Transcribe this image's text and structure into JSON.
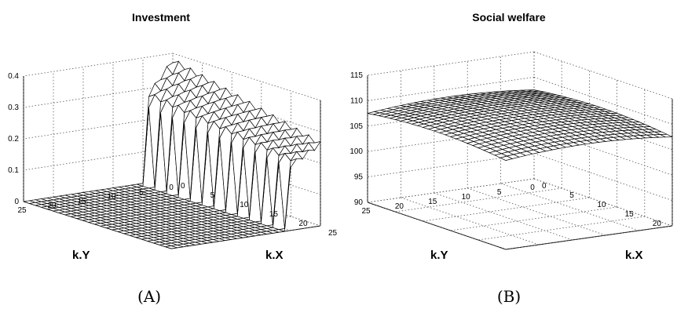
{
  "chart_data": [
    {
      "panel": "(A)",
      "type": "surface",
      "title": "Investment",
      "xlabel": "k.X",
      "ylabel": "k.Y",
      "zlabel": "",
      "x_range": [
        0,
        25
      ],
      "y_range": [
        0,
        25
      ],
      "zlim": [
        0,
        0.4
      ],
      "x_ticks": [
        "0",
        "5",
        "10",
        "15",
        "20",
        "25"
      ],
      "y_ticks": [
        "0",
        "5",
        "10",
        "15",
        "20",
        "25"
      ],
      "z_ticks": [
        "0",
        "0.1",
        "0.2",
        "0.3",
        "0.4"
      ],
      "grid": true,
      "surface": {
        "description": "nonzero only for k.Y <= 5; peak about 0.37 at k.Y = 0, k.X = 0; about 0.25 along k.Y = 5, alternating with 0 in a spiky pattern; zero elsewhere",
        "peak_value": 0.37,
        "ridge_value_at_kY_5": 0.25,
        "ridge_value_at_kX_25": 0.2
      }
    },
    {
      "panel": "(B)",
      "type": "surface",
      "title": "Social welfare",
      "xlabel": "k.X",
      "ylabel": "k.Y",
      "zlabel": "",
      "x_range": [
        0,
        25
      ],
      "y_range": [
        0,
        25
      ],
      "zlim": [
        90,
        115
      ],
      "x_ticks": [
        "0",
        "5",
        "10",
        "15",
        "20",
        "25"
      ],
      "y_ticks": [
        "0",
        "5",
        "10",
        "15",
        "20",
        "25"
      ],
      "z_ticks": [
        "90",
        "95",
        "100",
        "105",
        "110",
        "115"
      ],
      "grid": true,
      "surface": {
        "description": "smooth dome, about 107.5 at the corners rising to about 109.5 in the middle",
        "corner_value": 107.5,
        "center_value": 109.5
      }
    }
  ],
  "captions": [
    "(A)",
    "(B)"
  ]
}
